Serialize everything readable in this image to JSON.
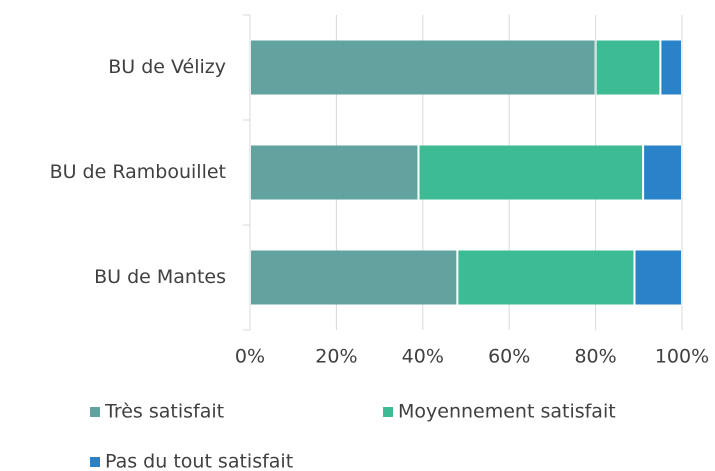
{
  "chart_data": {
    "type": "stacked_barh",
    "categories": [
      "BU de Vélizy",
      "BU de Rambouillet",
      "BU de Mantes"
    ],
    "series": [
      {
        "name": "Très satisfait",
        "color": "#62a39f",
        "values": [
          80,
          39,
          48
        ]
      },
      {
        "name": "Moyennement satisfait",
        "color": "#3dbb95",
        "values": [
          15,
          52,
          41
        ]
      },
      {
        "name": "Pas du tout satisfait",
        "color": "#2a82c9",
        "values": [
          5,
          9,
          11
        ]
      }
    ],
    "xlim": [
      0,
      100
    ],
    "xticks": [
      {
        "value": 0,
        "label": "0%"
      },
      {
        "value": 20,
        "label": "20%"
      },
      {
        "value": 40,
        "label": "40%"
      },
      {
        "value": 60,
        "label": "60%"
      },
      {
        "value": 80,
        "label": "80%"
      },
      {
        "value": 100,
        "label": "100%"
      }
    ],
    "grid": true
  }
}
